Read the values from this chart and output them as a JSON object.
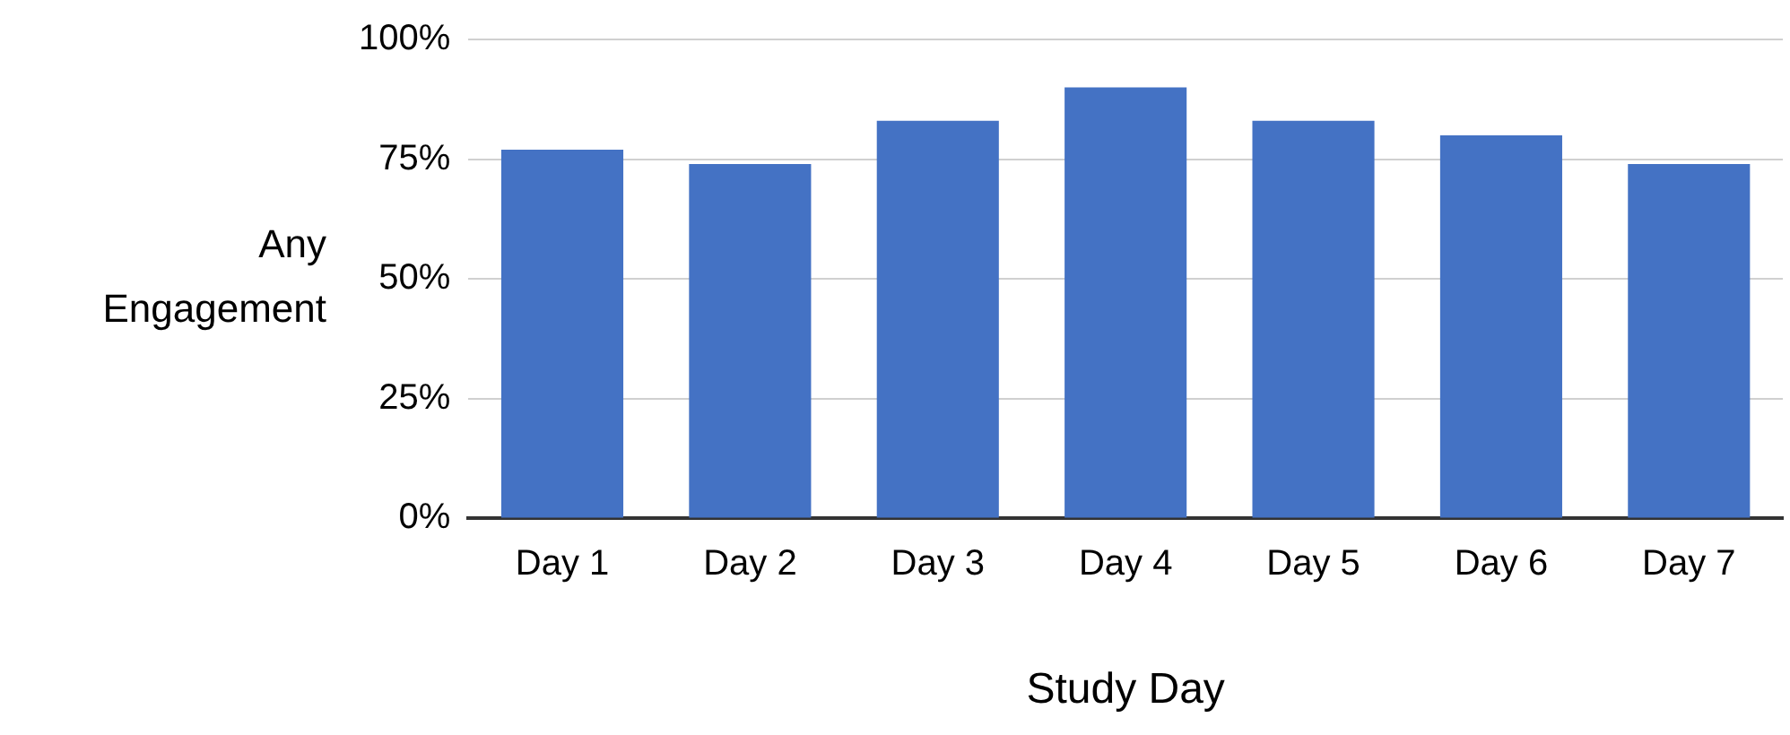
{
  "chart_data": {
    "type": "bar",
    "xlabel": "Study Day",
    "ylabel": "Any Engagement",
    "categories": [
      "Day 1",
      "Day 2",
      "Day 3",
      "Day 4",
      "Day 5",
      "Day 6",
      "Day 7"
    ],
    "values": [
      77,
      74,
      83,
      90,
      83,
      80,
      74
    ],
    "color": "#4472c4",
    "ylim": [
      0,
      100
    ],
    "yticks": [
      {
        "value": 0,
        "label": "0%"
      },
      {
        "value": 25,
        "label": "25%"
      },
      {
        "value": 50,
        "label": "50%"
      },
      {
        "value": 75,
        "label": "75%"
      },
      {
        "value": 100,
        "label": "100%"
      }
    ],
    "grid": "y"
  }
}
